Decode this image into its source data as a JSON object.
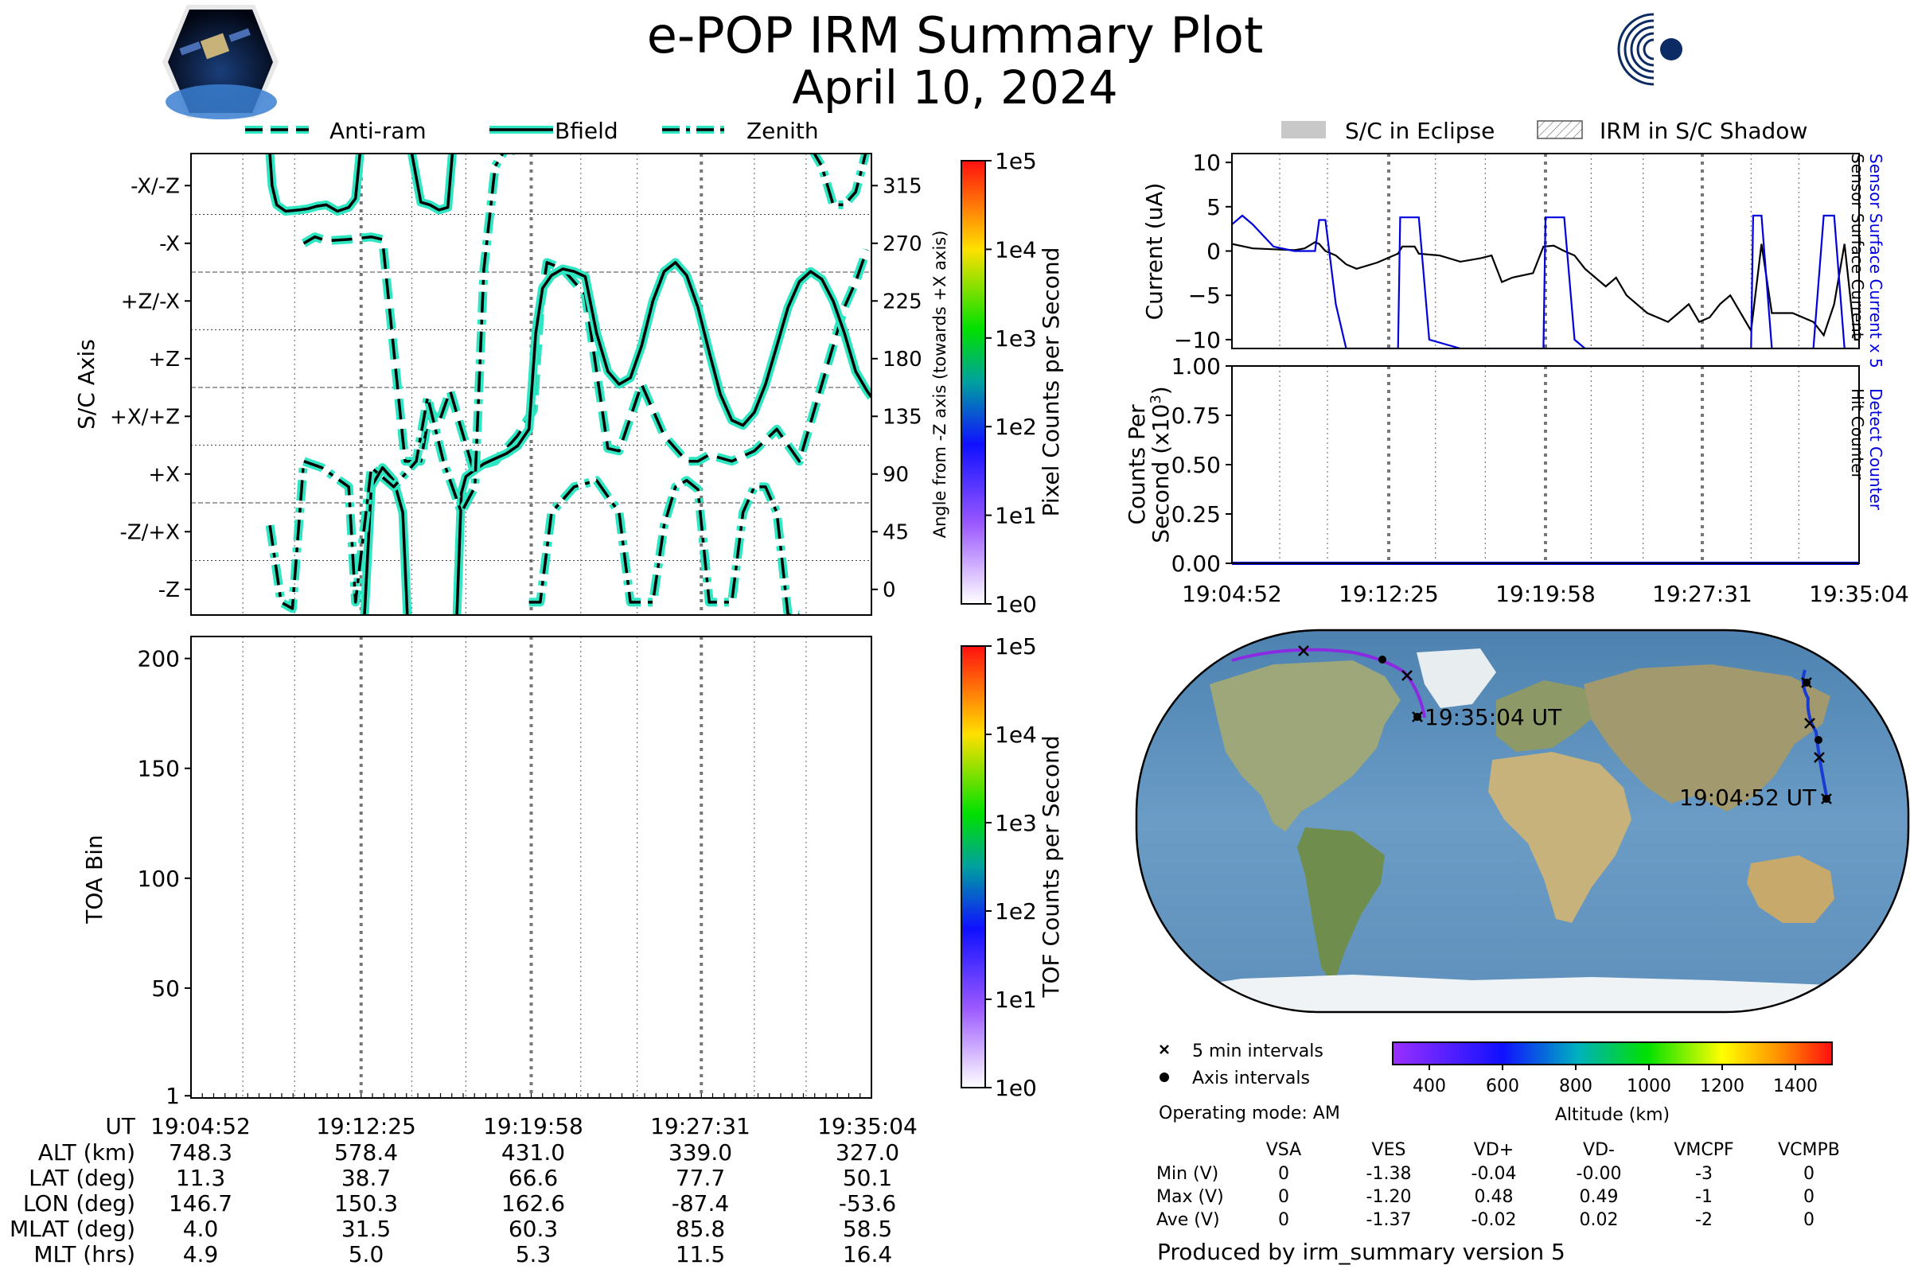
{
  "header": {
    "title_line1": "e-POP IRM Summary Plot",
    "title_line2": "April 10, 2024",
    "left_logo": "CASSIOPE",
    "right_logo": "esa"
  },
  "colors": {
    "bfield_line": "#000000",
    "bfield_glow": "#2ee6c1",
    "current_black": "#000000",
    "current_blue": "#0000dd",
    "eclipse_gray": "#c8c8c8",
    "esa_navy": "#0c2a63"
  },
  "icons": {
    "left_logo": "cassiope-satellite-logo",
    "right_logo": "esa-logo"
  },
  "chart_data": [
    {
      "type": "line",
      "id": "attitude",
      "legend": [
        "Anti-ram",
        "Bfield",
        "Zenith"
      ],
      "legend_placement": "top",
      "ylabel_left": "S/C Axis",
      "ylabel_right": "Angle from -Z axis (towards +X axis)",
      "y_tick_labels_left": [
        "-X/-Z",
        "-X",
        "+Z/-X",
        "+Z",
        "+X/+Z",
        "+X",
        "-Z/+X",
        "-Z"
      ],
      "y_tick_values_right": [
        315,
        270,
        225,
        180,
        135,
        90,
        45,
        0
      ],
      "y_tick_labels_right": [
        "315",
        "270",
        "225",
        "180",
        "135",
        "90",
        "45",
        "0"
      ],
      "ylim": [
        -20,
        340
      ],
      "xlim_min": [
        0,
        30.2
      ],
      "colorbar": {
        "label": "Pixel Counts per Second",
        "ticks": [
          "1e5",
          "1e4",
          "1e3",
          "1e2",
          "1e1",
          "1e0"
        ],
        "scale": "log"
      },
      "series": [
        {
          "name": "Anti-ram",
          "style": "dashed",
          "x": [
            5.0,
            5.5,
            6.0,
            7.0,
            8.0,
            8.5,
            9.5,
            10.2,
            10.6,
            11.0,
            11.5,
            12.5,
            13.5,
            14.5,
            15.2,
            15.5,
            15.8,
            16.5,
            17.5,
            18.5,
            19.0,
            20.0,
            21.0,
            22.0,
            22.5,
            23.0,
            24.0,
            25.0,
            26.0,
            27.0,
            28.0,
            28.5,
            29.0,
            29.5,
            30.0
          ],
          "y": [
            270,
            275,
            272,
            273,
            275,
            273,
            100,
            100,
            140,
            130,
            155,
            95,
            100,
            120,
            140,
            220,
            255,
            250,
            230,
            110,
            108,
            160,
            120,
            100,
            100,
            105,
            100,
            108,
            125,
            100,
            160,
            190,
            220,
            240,
            265
          ]
        },
        {
          "name": "Bfield",
          "style": "solid",
          "x": [
            3.5,
            3.6,
            3.8,
            4.2,
            4.8,
            5.2,
            5.6,
            6.0,
            6.5,
            7.0,
            7.3,
            7.5,
            7.7,
            8.0,
            8.5,
            9.0,
            9.4,
            9.6,
            9.8,
            10.2,
            10.6,
            11.0,
            11.4,
            11.6,
            11.8,
            12.0,
            12.2,
            12.5,
            13.0,
            13.5,
            14.0,
            14.5,
            15.0,
            15.3,
            15.6,
            16.0,
            16.5,
            17.0,
            17.5,
            18.0,
            18.5,
            19.0,
            19.5,
            20.0,
            20.5,
            21.0,
            21.5,
            22.0,
            22.5,
            23.0,
            23.5,
            24.0,
            24.5,
            25.0,
            25.5,
            26.0,
            26.5,
            27.0,
            27.5,
            28.0,
            28.5,
            29.0,
            29.5,
            30.0,
            30.2
          ],
          "y": [
            340,
            315,
            300,
            295,
            296,
            297,
            299,
            300,
            295,
            298,
            305,
            340,
            -20,
            80,
            95,
            85,
            60,
            -20,
            340,
            302,
            300,
            296,
            298,
            340,
            -20,
            75,
            88,
            92,
            98,
            102,
            106,
            112,
            125,
            200,
            235,
            245,
            250,
            248,
            244,
            200,
            170,
            160,
            165,
            190,
            225,
            248,
            255,
            245,
            220,
            185,
            152,
            132,
            128,
            138,
            160,
            190,
            220,
            240,
            248,
            242,
            225,
            200,
            170,
            155,
            150
          ]
        },
        {
          "name": "Zenith",
          "style": "dashdot",
          "x": [
            3.5,
            4.0,
            4.5,
            5.0,
            5.8,
            7.0,
            7.3,
            8.0,
            9.0,
            10.0,
            10.5,
            11.2,
            12.0,
            12.6,
            13.0,
            13.5,
            14.0,
            14.6,
            15.0,
            15.5,
            16.0,
            17.0,
            18.0,
            19.0,
            19.5,
            20.0,
            20.5,
            21.0,
            21.5,
            22.0,
            22.5,
            23.0,
            23.5,
            24.0,
            24.5,
            25.0,
            25.5,
            26.0,
            26.5,
            27.0,
            27.5,
            28.0,
            28.5,
            29.0,
            29.5,
            29.8,
            30.0,
            30.2
          ],
          "y": [
            50,
            -10,
            -15,
            100,
            95,
            80,
            -10,
            95,
            80,
            100,
            150,
            100,
            60,
            80,
            250,
            330,
            345,
            340,
            -10,
            -10,
            60,
            80,
            85,
            60,
            -10,
            -10,
            -10,
            50,
            80,
            85,
            78,
            -10,
            -10,
            -10,
            60,
            80,
            80,
            60,
            -20,
            -20,
            345,
            330,
            300,
            300,
            310,
            330,
            345,
            340
          ]
        }
      ]
    },
    {
      "type": "heatmap",
      "id": "toa",
      "ylabel": "TOA Bin",
      "y_ticks": [
        1,
        50,
        100,
        150,
        200
      ],
      "ylim": [
        0,
        210
      ],
      "colorbar": {
        "label": "TOF Counts per Second",
        "ticks": [
          "1e5",
          "1e4",
          "1e3",
          "1e2",
          "1e1",
          "1e0"
        ],
        "scale": "log"
      },
      "values": []
    },
    {
      "type": "line",
      "id": "current",
      "legend": [
        "S/C in Eclipse",
        "IRM in S/C Shadow"
      ],
      "legend_placement": "top",
      "ylabel": "Current (uA)",
      "right_labels": [
        "Sensor Surface Current x 5",
        "Sensor Surface Current"
      ],
      "y_ticks": [
        10,
        5,
        0,
        -5,
        -10
      ],
      "y_tick_labels": [
        "10",
        "5",
        "0",
        "−5",
        "−10"
      ],
      "ylim": [
        -11,
        11
      ],
      "series": [
        {
          "name": "Sensor Surface Current",
          "color": "#000000",
          "x": [
            0,
            1,
            2,
            3,
            3.5,
            4,
            4.2,
            4.5,
            5.0,
            5.5,
            6.0,
            7.0,
            8.0,
            8.2,
            8.8,
            9.0,
            10.0,
            11.0,
            12.0,
            12.5,
            13.0,
            13.5,
            14.5,
            15.0,
            15.5,
            16.0,
            16.5,
            17.0,
            18.0,
            18.5,
            19.0,
            19.5,
            20.0,
            20.5,
            21.0,
            21.5,
            22.0,
            22.5,
            23.0,
            23.5,
            24.0,
            25.0,
            25.5,
            26.0,
            27.0,
            28.0,
            28.5,
            29.0,
            29.5,
            30.0,
            30.2
          ],
          "y": [
            0.8,
            0.3,
            0.2,
            0.1,
            0.3,
            1.0,
            0.8,
            0,
            -0.5,
            -1.5,
            -2.0,
            -1.3,
            -0.3,
            0.5,
            0.5,
            -0.3,
            -0.5,
            -1.2,
            -0.8,
            -0.5,
            -3.5,
            -3.0,
            -2.5,
            0.5,
            0.6,
            0,
            -0.5,
            -2.0,
            -4.0,
            -3.0,
            -5.0,
            -6.0,
            -7.0,
            -7.5,
            -8.0,
            -7.0,
            -6.0,
            -8.0,
            -7.5,
            -6.0,
            -5.0,
            -9.0,
            0.8,
            -7.0,
            -7.0,
            -8.0,
            -9.5,
            -6.0,
            0.8,
            -10.0,
            -10.0
          ]
        },
        {
          "name": "Sensor Surface Current x 5",
          "color": "#0000dd",
          "x": [
            0,
            0.5,
            1.0,
            2.0,
            3.0,
            4.0,
            4.2,
            4.5,
            5.0,
            5.5,
            6.0,
            7.0,
            8.0,
            8.1,
            8.5,
            9.0,
            9.5,
            11.0,
            15.0,
            15.1,
            15.5,
            16.0,
            16.5,
            17.0,
            25.0,
            25.1,
            25.5,
            26.0,
            26.5,
            28.0,
            28.5,
            29.0,
            29.5,
            30.0
          ],
          "y": [
            3,
            4,
            3,
            0.5,
            0,
            0,
            3.5,
            3.5,
            -6,
            -11,
            -11,
            -11,
            -11,
            3.8,
            3.8,
            3.8,
            -10,
            -11,
            -11,
            3.8,
            3.8,
            3.8,
            -10,
            -11,
            -11,
            4,
            4,
            -11,
            -11,
            -11,
            4,
            4,
            -11,
            -11
          ]
        }
      ]
    },
    {
      "type": "line",
      "id": "counts",
      "ylabel_line1": "Counts Per",
      "ylabel_line2": "Second (x10",
      "ylabel_exp": "3",
      "ylabel_close": ")",
      "right_labels": [
        "Detect Counter",
        "Hit Counter"
      ],
      "y_ticks": [
        0,
        0.25,
        0.5,
        0.75,
        1.0
      ],
      "y_tick_labels": [
        "0.00",
        "0.25",
        "0.50",
        "0.75",
        "1.00"
      ],
      "ylim": [
        0,
        1.0
      ],
      "x_tick_labels": [
        "19:04:52",
        "19:12:25",
        "19:19:58",
        "19:27:31",
        "19:35:04"
      ],
      "series": [
        {
          "name": "Detect Counter",
          "color": "#0000dd",
          "x": [
            0,
            30.2
          ],
          "y": [
            0,
            0
          ]
        }
      ]
    },
    {
      "type": "scatter",
      "id": "ground-track-map",
      "labels": [
        "19:35:04 UT",
        "19:04:52 UT"
      ],
      "legend": [
        "5 min intervals",
        "Axis intervals"
      ],
      "colorbar": {
        "label": "Altitude (km)",
        "ticks": [
          400,
          600,
          800,
          1000,
          1200,
          1400
        ],
        "range": [
          300,
          1500
        ]
      }
    }
  ],
  "time_table": {
    "row_labels": [
      "UT",
      "ALT (km)",
      "LAT (deg)",
      "LON (deg)",
      "MLAT (deg)",
      "MLT (hrs)"
    ],
    "columns": [
      [
        "19:04:52",
        "748.3",
        "11.3",
        "146.7",
        "4.0",
        "4.9"
      ],
      [
        "19:12:25",
        "578.4",
        "38.7",
        "150.3",
        "31.5",
        "5.0"
      ],
      [
        "19:19:58",
        "431.0",
        "66.6",
        "162.6",
        "60.3",
        "5.3"
      ],
      [
        "19:27:31",
        "339.0",
        "77.7",
        "-87.4",
        "85.8",
        "11.5"
      ],
      [
        "19:35:04",
        "327.0",
        "50.1",
        "-53.6",
        "58.5",
        "16.4"
      ]
    ]
  },
  "info": {
    "operating_mode": "Operating mode: AM",
    "produced_by": "Produced by irm_summary version 5"
  },
  "voltage_table": {
    "headers": [
      "VSA",
      "VES",
      "VD+",
      "VD-",
      "VMCPF",
      "VCMPB"
    ],
    "rows": [
      {
        "label": "Min (V)",
        "values": [
          "0",
          "-1.38",
          "-0.04",
          "-0.00",
          "-3",
          "0"
        ]
      },
      {
        "label": "Max (V)",
        "values": [
          "0",
          "-1.20",
          "0.48",
          "0.49",
          "-1",
          "0"
        ]
      },
      {
        "label": "Ave (V)",
        "values": [
          "0",
          "-1.37",
          "-0.02",
          "0.02",
          "-2",
          "0"
        ]
      }
    ]
  }
}
